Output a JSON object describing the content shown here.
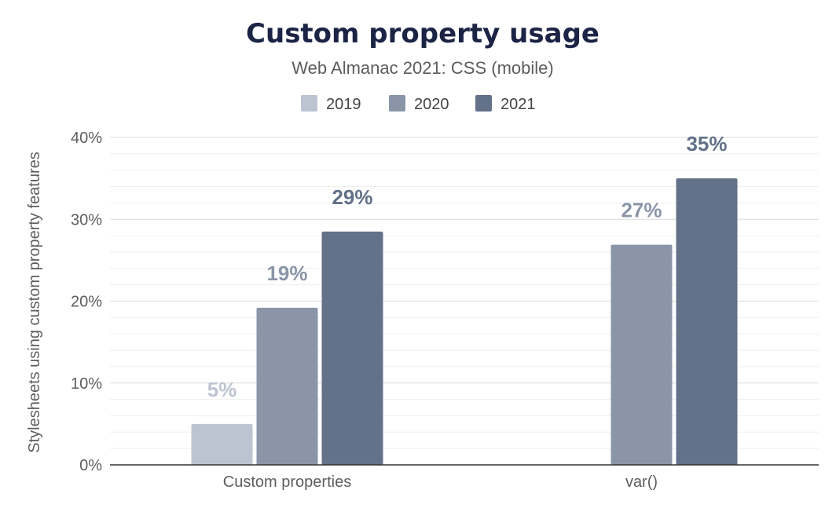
{
  "chart_data": {
    "type": "bar",
    "title": "Custom property usage",
    "subtitle": "Web Almanac 2021: CSS (mobile)",
    "xlabel": "",
    "ylabel": "Stylesheets using custom property features",
    "categories": [
      "Custom properties",
      "var()"
    ],
    "series": [
      {
        "name": "2019",
        "color": "#bdc4d1",
        "values": [
          5,
          null
        ],
        "labels": [
          "5%",
          ""
        ]
      },
      {
        "name": "2020",
        "color": "#8a95a8",
        "values": [
          19.2,
          26.9
        ],
        "labels": [
          "19%",
          "27%"
        ]
      },
      {
        "name": "2021",
        "color": "#637189",
        "values": [
          28.5,
          35
        ],
        "labels": [
          "29%",
          "35%"
        ]
      }
    ],
    "ylim": [
      0,
      40
    ],
    "yticks": [
      0,
      10,
      20,
      30,
      40
    ],
    "ytick_labels": [
      "0%",
      "10%",
      "20%",
      "30%",
      "40%"
    ],
    "grid": true,
    "legend_position": "top-center"
  }
}
